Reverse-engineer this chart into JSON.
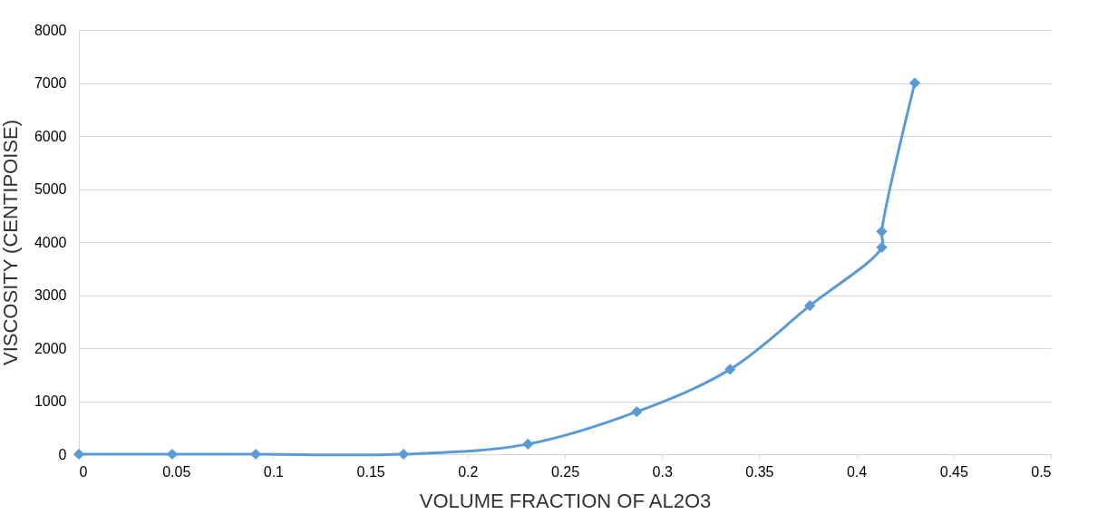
{
  "chart_data": {
    "type": "line",
    "xlabel": "VOLUME FRACTION OF AL2O3",
    "ylabel": "VISCOSITY (CENTIPOISE)",
    "x": [
      0,
      0.048,
      0.091,
      0.167,
      0.231,
      0.287,
      0.335,
      0.376,
      0.413,
      0.413,
      0.43
    ],
    "series": [
      {
        "color": "#5b9bd5",
        "values": [
          0,
          0,
          0,
          0,
          190,
          800,
          1600,
          2800,
          3900,
          4200,
          7000
        ]
      }
    ],
    "xlim": [
      0,
      0.5
    ],
    "xticks": [
      0,
      0.05,
      0.1,
      0.15,
      0.2,
      0.25,
      0.3,
      0.35,
      0.4,
      0.45,
      0.5
    ],
    "ylim": [
      0,
      8000
    ],
    "yticks": [
      0,
      1000,
      2000,
      3000,
      4000,
      5000,
      6000,
      7000,
      8000
    ],
    "grid": "y",
    "marker": "diamond",
    "line_style": "solid",
    "legend": false
  }
}
